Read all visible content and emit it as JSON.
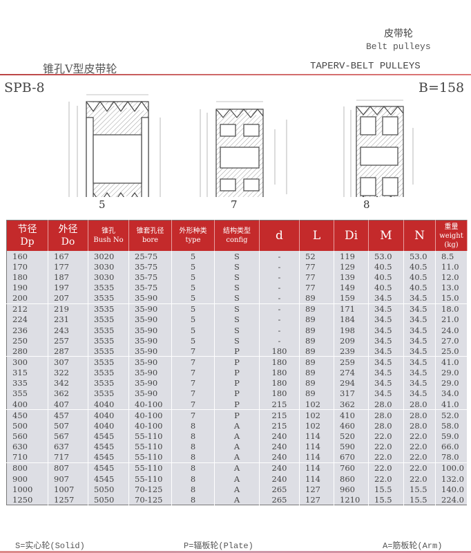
{
  "header": {
    "category_cn": "皮带轮",
    "category_en": "Belt pulleys",
    "title_cn": "锥孔V型皮带轮",
    "title_en": "TAPERV-BELT PULLEYS",
    "model": "SPB-8",
    "width": "B=158"
  },
  "figures": [
    {
      "label": "5"
    },
    {
      "label": "7"
    },
    {
      "label": "8"
    }
  ],
  "colors": {
    "header_red": "#c42a2b",
    "row_bg": "#dddee4",
    "rule": "#c44"
  },
  "table": {
    "columns": [
      {
        "cn": "节径",
        "en": "Dp"
      },
      {
        "cn": "外径",
        "en": "Do"
      },
      {
        "cn": "锥孔",
        "en": "Bush No"
      },
      {
        "cn": "锥套孔径",
        "en": "bore"
      },
      {
        "cn": "外形种类",
        "en": "type"
      },
      {
        "cn": "结构类型",
        "en": "config"
      },
      {
        "cn": "",
        "en": "d"
      },
      {
        "cn": "",
        "en": "L"
      },
      {
        "cn": "",
        "en": "Di"
      },
      {
        "cn": "",
        "en": "M"
      },
      {
        "cn": "",
        "en": "N"
      },
      {
        "cn": "重量",
        "en": "weight (kg)"
      }
    ],
    "rows": [
      [
        "160",
        "167",
        "3020",
        "25-75",
        "5",
        "S",
        "-",
        "52",
        "119",
        "53.0",
        "53.0",
        "8.5"
      ],
      [
        "170",
        "177",
        "3030",
        "35-75",
        "5",
        "S",
        "-",
        "77",
        "129",
        "40.5",
        "40.5",
        "11.0"
      ],
      [
        "180",
        "187",
        "3030",
        "35-75",
        "5",
        "S",
        "-",
        "77",
        "139",
        "40.5",
        "40.5",
        "12.0"
      ],
      [
        "190",
        "197",
        "3535",
        "35-75",
        "5",
        "S",
        "-",
        "77",
        "149",
        "40.5",
        "40.5",
        "13.0"
      ],
      [
        "200",
        "207",
        "3535",
        "35-90",
        "5",
        "S",
        "-",
        "89",
        "159",
        "34.5",
        "34.5",
        "15.0"
      ],
      [
        "212",
        "219",
        "3535",
        "35-90",
        "5",
        "S",
        "-",
        "89",
        "171",
        "34.5",
        "34.5",
        "18.0"
      ],
      [
        "224",
        "231",
        "3535",
        "35-90",
        "5",
        "S",
        "-",
        "89",
        "184",
        "34.5",
        "34.5",
        "21.0"
      ],
      [
        "236",
        "243",
        "3535",
        "35-90",
        "5",
        "S",
        "-",
        "89",
        "198",
        "34.5",
        "34.5",
        "24.0"
      ],
      [
        "250",
        "257",
        "3535",
        "35-90",
        "5",
        "S",
        "-",
        "89",
        "209",
        "34.5",
        "34.5",
        "27.0"
      ],
      [
        "280",
        "287",
        "3535",
        "35-90",
        "7",
        "P",
        "180",
        "89",
        "239",
        "34.5",
        "34.5",
        "25.0"
      ],
      [
        "300",
        "307",
        "3535",
        "35-90",
        "7",
        "P",
        "180",
        "89",
        "259",
        "34.5",
        "34.5",
        "41.0"
      ],
      [
        "315",
        "322",
        "3535",
        "35-90",
        "7",
        "P",
        "180",
        "89",
        "274",
        "34.5",
        "34.5",
        "29.0"
      ],
      [
        "335",
        "342",
        "3535",
        "35-90",
        "7",
        "P",
        "180",
        "89",
        "294",
        "34.5",
        "34.5",
        "29.0"
      ],
      [
        "355",
        "362",
        "3535",
        "35-90",
        "7",
        "P",
        "180",
        "89",
        "317",
        "34.5",
        "34.5",
        "34.0"
      ],
      [
        "400",
        "407",
        "4040",
        "40-100",
        "7",
        "P",
        "215",
        "102",
        "362",
        "28.0",
        "28.0",
        "41.0"
      ],
      [
        "450",
        "457",
        "4040",
        "40-100",
        "7",
        "P",
        "215",
        "102",
        "410",
        "28.0",
        "28.0",
        "52.0"
      ],
      [
        "500",
        "507",
        "4040",
        "40-100",
        "8",
        "A",
        "215",
        "102",
        "460",
        "28.0",
        "28.0",
        "58.0"
      ],
      [
        "560",
        "567",
        "4545",
        "55-110",
        "8",
        "A",
        "240",
        "114",
        "520",
        "22.0",
        "22.0",
        "59.0"
      ],
      [
        "630",
        "637",
        "4545",
        "55-110",
        "8",
        "A",
        "240",
        "114",
        "590",
        "22.0",
        "22.0",
        "66.0"
      ],
      [
        "710",
        "717",
        "4545",
        "55-110",
        "8",
        "A",
        "240",
        "114",
        "670",
        "22.0",
        "22.0",
        "78.0"
      ],
      [
        "800",
        "807",
        "4545",
        "55-110",
        "8",
        "A",
        "240",
        "114",
        "760",
        "22.0",
        "22.0",
        "100.0"
      ],
      [
        "900",
        "907",
        "4545",
        "55-110",
        "8",
        "A",
        "240",
        "114",
        "860",
        "22.0",
        "22.0",
        "132.0"
      ],
      [
        "1000",
        "1007",
        "5050",
        "70-125",
        "8",
        "A",
        "265",
        "127",
        "960",
        "15.5",
        "15.5",
        "140.0"
      ],
      [
        "1250",
        "1257",
        "5050",
        "70-125",
        "8",
        "A",
        "265",
        "127",
        "1210",
        "15.5",
        "15.5",
        "224.0"
      ]
    ]
  },
  "legend": {
    "solid": "S=实心轮(Solid)",
    "plate": "P=辐板轮(Plate)",
    "arm": "A=筋板轮(Arm)"
  }
}
